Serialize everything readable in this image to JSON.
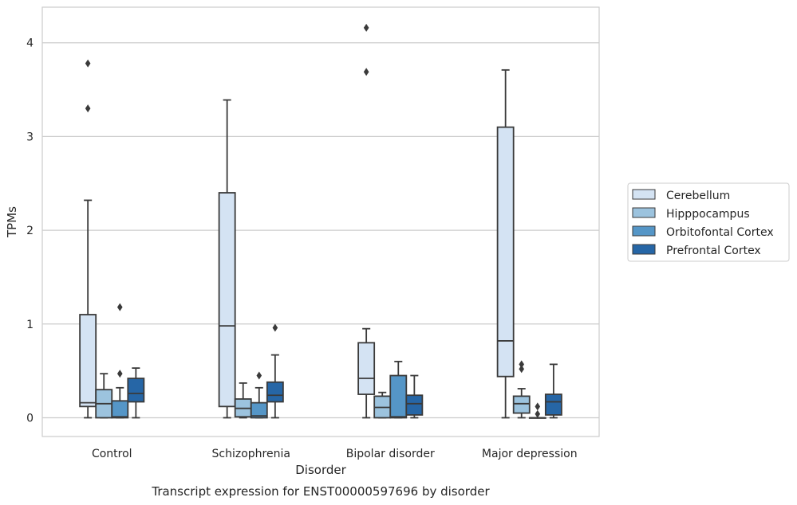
{
  "chart_data": {
    "type": "box",
    "caption": "Transcript expression for ENST00000597696 by disorder",
    "xlabel": "Disorder",
    "ylabel": "TPMs",
    "ylim": [
      -0.2,
      4.38
    ],
    "yticks": [
      0,
      1,
      2,
      3,
      4
    ],
    "grid": true,
    "legend_position": "right",
    "categories": [
      "Control",
      "Schizophrenia",
      "Bipolar disorder",
      "Major depression"
    ],
    "series": [
      {
        "name": "Cerebellum",
        "color": "#d4e3f3",
        "boxes": [
          {
            "whislo": 0.0,
            "q1": 0.12,
            "med": 0.16,
            "q3": 1.1,
            "whishi": 2.32,
            "fliers": [
              3.3,
              3.78
            ]
          },
          {
            "whislo": 0.0,
            "q1": 0.12,
            "med": 0.98,
            "q3": 2.4,
            "whishi": 3.39,
            "fliers": []
          },
          {
            "whislo": 0.0,
            "q1": 0.25,
            "med": 0.42,
            "q3": 0.8,
            "whishi": 0.95,
            "fliers": [
              3.69,
              4.16
            ]
          },
          {
            "whislo": 0.0,
            "q1": 0.44,
            "med": 0.82,
            "q3": 3.1,
            "whishi": 3.71,
            "fliers": []
          }
        ]
      },
      {
        "name": "Hipppocampus",
        "color": "#9cc3de",
        "boxes": [
          {
            "whislo": 0.0,
            "q1": 0.0,
            "med": 0.15,
            "q3": 0.3,
            "whishi": 0.47,
            "fliers": []
          },
          {
            "whislo": 0.0,
            "q1": 0.01,
            "med": 0.1,
            "q3": 0.2,
            "whishi": 0.37,
            "fliers": []
          },
          {
            "whislo": 0.0,
            "q1": 0.0,
            "med": 0.11,
            "q3": 0.23,
            "whishi": 0.27,
            "fliers": []
          },
          {
            "whislo": 0.0,
            "q1": 0.05,
            "med": 0.15,
            "q3": 0.23,
            "whishi": 0.31,
            "fliers": [
              0.52,
              0.57
            ]
          }
        ]
      },
      {
        "name": "Orbitofontal Cortex",
        "color": "#5596c7",
        "boxes": [
          {
            "whislo": 0.0,
            "q1": 0.0,
            "med": 0.01,
            "q3": 0.18,
            "whishi": 0.32,
            "fliers": [
              0.47,
              1.18
            ]
          },
          {
            "whislo": 0.0,
            "q1": 0.0,
            "med": 0.02,
            "q3": 0.16,
            "whishi": 0.32,
            "fliers": [
              0.45
            ]
          },
          {
            "whislo": 0.0,
            "q1": 0.0,
            "med": 0.01,
            "q3": 0.45,
            "whishi": 0.6,
            "fliers": []
          },
          {
            "whislo": 0.0,
            "q1": 0.0,
            "med": 0.0,
            "q3": 0.0,
            "whishi": 0.0,
            "fliers": [
              0.04,
              0.12
            ]
          }
        ]
      },
      {
        "name": "Prefrontal Cortex",
        "color": "#2666a6",
        "boxes": [
          {
            "whislo": 0.0,
            "q1": 0.17,
            "med": 0.26,
            "q3": 0.42,
            "whishi": 0.53,
            "fliers": []
          },
          {
            "whislo": 0.0,
            "q1": 0.17,
            "med": 0.24,
            "q3": 0.38,
            "whishi": 0.67,
            "fliers": [
              0.96
            ]
          },
          {
            "whislo": 0.0,
            "q1": 0.03,
            "med": 0.15,
            "q3": 0.24,
            "whishi": 0.45,
            "fliers": []
          },
          {
            "whislo": 0.0,
            "q1": 0.03,
            "med": 0.17,
            "q3": 0.25,
            "whishi": 0.57,
            "fliers": []
          }
        ]
      }
    ]
  }
}
